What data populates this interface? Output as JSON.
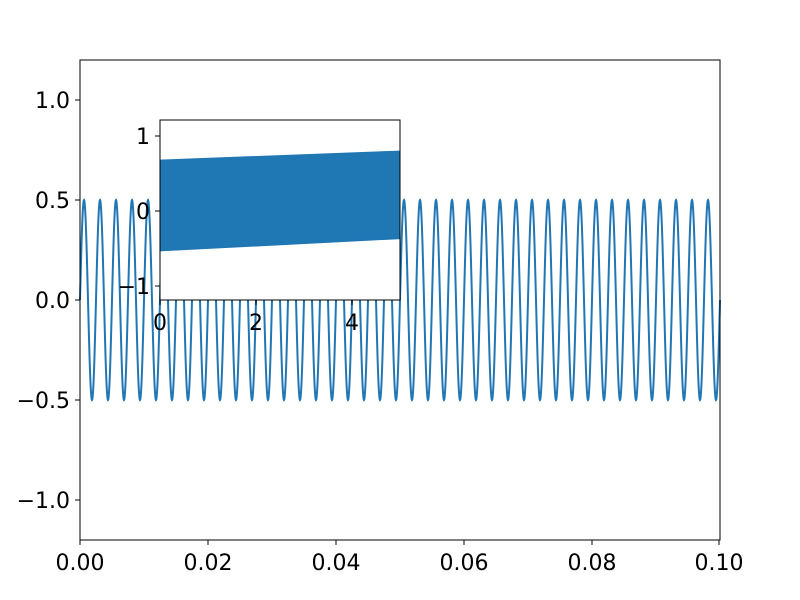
{
  "chart_data": [
    {
      "id": "main",
      "type": "line",
      "title": "",
      "xlabel": "",
      "ylabel": "",
      "xlim": [
        0.0,
        0.1
      ],
      "ylim": [
        -1.2,
        1.2
      ],
      "xticks": [
        0.0,
        0.02,
        0.04,
        0.06,
        0.08,
        0.1
      ],
      "xtick_labels": [
        "0.00",
        "0.02",
        "0.04",
        "0.06",
        "0.08",
        "0.10"
      ],
      "yticks": [
        -1.0,
        -0.5,
        0.0,
        0.5,
        1.0
      ],
      "ytick_labels": [
        "−1.0",
        "−0.5",
        "0.0",
        "0.5",
        "1.0"
      ],
      "grid": false,
      "series": [
        {
          "function": "sine",
          "amplitude": 0.5,
          "frequency_hz": 400,
          "x_start": 0.0,
          "x_end": 0.1,
          "color": "#1f77b4"
        }
      ]
    },
    {
      "id": "inset",
      "type": "area",
      "title": "",
      "xlabel": "",
      "ylabel": "",
      "xlim": [
        0.0,
        5.0
      ],
      "ylim": [
        -1.1,
        1.1
      ],
      "xticks": [
        0,
        2,
        4
      ],
      "xtick_labels": [
        "0",
        "2",
        "4"
      ],
      "yticks": [
        -1,
        0,
        1
      ],
      "ytick_labels": [
        "−1",
        "0",
        "1"
      ],
      "grid": false,
      "series": [
        {
          "description": "dense oscillation band",
          "x": [
            0.0,
            5.0
          ],
          "upper": [
            0.61,
            0.72
          ],
          "lower": [
            -0.5,
            -0.35
          ],
          "color": "#1f77b4"
        }
      ]
    }
  ]
}
